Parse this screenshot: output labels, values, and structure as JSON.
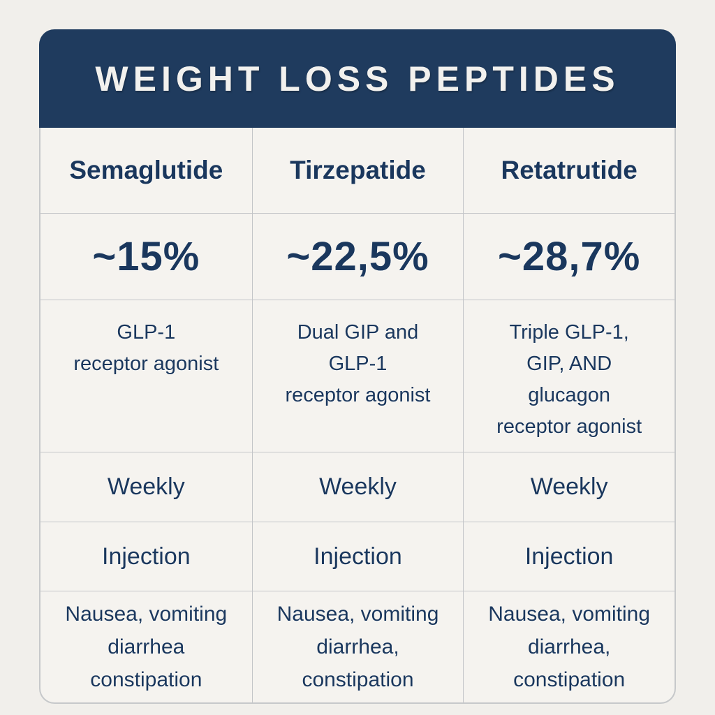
{
  "chart_data": {
    "type": "table",
    "title": "WEIGHT LOSS PEPTIDES",
    "columns": [
      "Semaglutide",
      "Tirzepatide",
      "Retatrutide"
    ],
    "rows": [
      {
        "id": "weight-loss-percent",
        "cells": [
          "~15%",
          "~22,5%",
          "~28,7%"
        ]
      },
      {
        "id": "mechanism",
        "cells": [
          "GLP-1\nreceptor agonist",
          "Dual GIP and\nGLP-1\nreceptor agonist",
          "Triple GLP-1,\nGIP, AND\nglucagon\nreceptor agonist"
        ]
      },
      {
        "id": "dosing-frequency",
        "cells": [
          "Weekly",
          "Weekly",
          "Weekly"
        ]
      },
      {
        "id": "administration-route",
        "cells": [
          "Injection",
          "Injection",
          "Injection"
        ]
      },
      {
        "id": "side-effects",
        "cells": [
          "Nausea, vomiting\ndiarrhea\nconstipation",
          "Nausea, vomiting\ndiarrhea,\nconstipation",
          "Nausea, vomiting\ndiarrhea,\nconstipation"
        ]
      }
    ],
    "colors": {
      "header_bg": "#1f3b5e",
      "title_text": "#f2f1ee",
      "cell_text": "#1a375d",
      "cell_bg": "#f5f3ef",
      "page_bg": "#f1efeb",
      "divider": "#c3c5c8"
    },
    "layout_hints": {
      "grid": "on",
      "columns_equal_width": true,
      "rounded_corners": true
    }
  }
}
